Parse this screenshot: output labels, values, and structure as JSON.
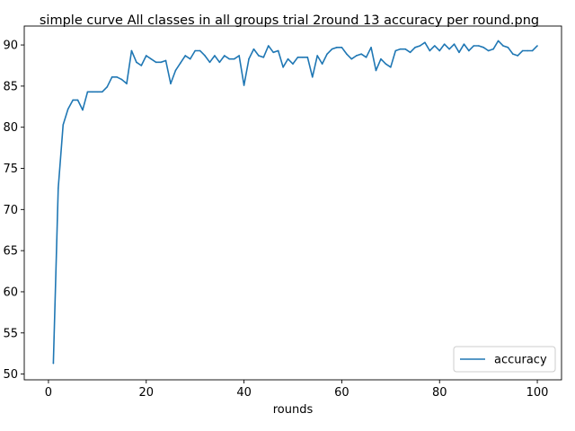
{
  "chart_data": {
    "type": "line",
    "title": "simple curve All classes in all groups trial 2round 13 accuracy per round.png",
    "xlabel": "rounds",
    "ylabel": "",
    "xlim": [
      -4.95,
      104.95
    ],
    "ylim": [
      49.3,
      92.3
    ],
    "x_ticks": [
      0,
      20,
      40,
      60,
      80,
      100
    ],
    "y_ticks": [
      50,
      55,
      60,
      65,
      70,
      75,
      80,
      85,
      90
    ],
    "y_tick_labels": [
      "50",
      "55",
      "60",
      "65",
      "70",
      "75",
      "80",
      "85",
      "90"
    ],
    "grid": false,
    "legend_position": "lower-right",
    "series": [
      {
        "name": "accuracy",
        "color": "#1f77b4",
        "x": [
          1,
          2,
          3,
          4,
          5,
          6,
          7,
          8,
          9,
          10,
          11,
          12,
          13,
          14,
          15,
          16,
          17,
          18,
          19,
          20,
          21,
          22,
          23,
          24,
          25,
          26,
          27,
          28,
          29,
          30,
          31,
          32,
          33,
          34,
          35,
          36,
          37,
          38,
          39,
          40,
          41,
          42,
          43,
          44,
          45,
          46,
          47,
          48,
          49,
          50,
          51,
          52,
          53,
          54,
          55,
          56,
          57,
          58,
          59,
          60,
          61,
          62,
          63,
          64,
          65,
          66,
          67,
          68,
          69,
          70,
          71,
          72,
          73,
          74,
          75,
          76,
          77,
          78,
          79,
          80,
          81,
          82,
          83,
          84,
          85,
          86,
          87,
          88,
          89,
          90,
          91,
          92,
          93,
          94,
          95,
          96,
          97,
          98,
          99,
          100
        ],
        "values": [
          51.3,
          72.6,
          80.3,
          82.2,
          83.3,
          83.3,
          82.1,
          84.3,
          84.3,
          84.3,
          84.3,
          84.9,
          86.1,
          86.1,
          85.8,
          85.3,
          89.3,
          87.9,
          87.5,
          88.7,
          88.3,
          87.9,
          87.9,
          88.1,
          85.3,
          86.9,
          87.8,
          88.7,
          88.3,
          89.3,
          89.3,
          88.7,
          87.9,
          88.7,
          87.9,
          88.7,
          88.3,
          88.3,
          88.7,
          85.1,
          88.3,
          89.5,
          88.7,
          88.5,
          89.9,
          89.1,
          89.3,
          87.3,
          88.3,
          87.7,
          88.5,
          88.5,
          88.5,
          86.1,
          88.7,
          87.7,
          88.9,
          89.5,
          89.7,
          89.7,
          88.9,
          88.3,
          88.7,
          88.9,
          88.5,
          89.7,
          86.9,
          88.3,
          87.7,
          87.3,
          89.3,
          89.5,
          89.5,
          89.1,
          89.7,
          89.9,
          90.3,
          89.3,
          89.9,
          89.3,
          90.1,
          89.5,
          90.1,
          89.1,
          90.1,
          89.3,
          89.9,
          89.9,
          89.7,
          89.3,
          89.5,
          90.5,
          89.9,
          89.7,
          88.9,
          88.7,
          89.3,
          89.3,
          89.3,
          89.9
        ]
      }
    ]
  }
}
